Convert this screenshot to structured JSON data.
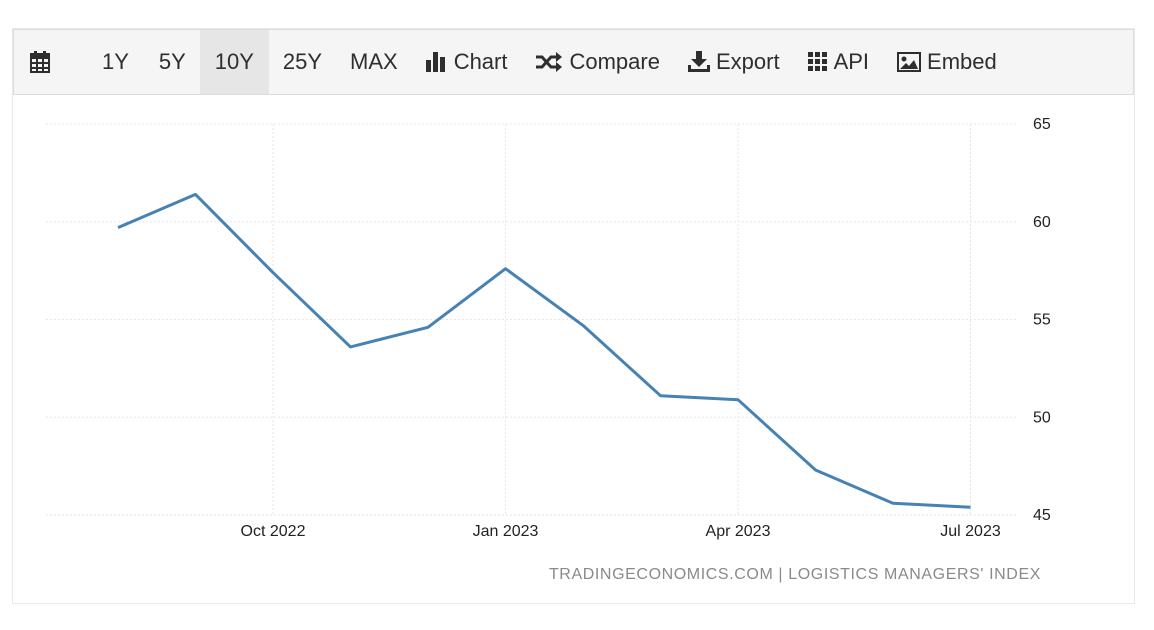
{
  "toolbar": {
    "items": [
      {
        "label": "1Y"
      },
      {
        "label": "5Y"
      },
      {
        "label": "10Y",
        "active": true
      },
      {
        "label": "25Y"
      },
      {
        "label": "MAX"
      },
      {
        "label": "Chart",
        "icon": "bar-chart-icon"
      },
      {
        "label": "Compare",
        "icon": "shuffle-icon"
      },
      {
        "label": "Export",
        "icon": "download-icon"
      },
      {
        "label": "API",
        "icon": "grid-icon"
      },
      {
        "label": "Embed",
        "icon": "image-icon"
      }
    ],
    "calendar_icon": "calendar-icon"
  },
  "credit": "TRADINGECONOMICS.COM | LOGISTICS MANAGERS' INDEX",
  "chart_data": {
    "type": "line",
    "title": "",
    "xlabel": "",
    "ylabel": "",
    "series": [
      {
        "color": "#4682b4",
        "points": [
          {
            "x": "2022-08",
            "y": 59.7
          },
          {
            "x": "2022-09",
            "y": 61.4
          },
          {
            "x": "2022-10",
            "y": 57.4
          },
          {
            "x": "2022-11",
            "y": 53.6
          },
          {
            "x": "2022-12",
            "y": 54.6
          },
          {
            "x": "2023-01",
            "y": 57.6
          },
          {
            "x": "2023-02",
            "y": 54.7
          },
          {
            "x": "2023-03",
            "y": 51.1
          },
          {
            "x": "2023-04",
            "y": 50.9
          },
          {
            "x": "2023-05",
            "y": 47.3
          },
          {
            "x": "2023-06",
            "y": 45.6
          },
          {
            "x": "2023-07",
            "y": 45.4
          }
        ]
      }
    ],
    "x_ticks": [
      {
        "label": "Oct 2022",
        "x": "2022-10"
      },
      {
        "label": "Jan 2023",
        "x": "2023-01"
      },
      {
        "label": "Apr 2023",
        "x": "2023-04"
      },
      {
        "label": "Jul 2023",
        "x": "2023-07"
      }
    ],
    "y_ticks": [
      45,
      50,
      55,
      60,
      65
    ],
    "ylim": [
      45,
      65
    ],
    "y_axis_side": "right",
    "grid": true,
    "grid_color": "#e6e6e6",
    "legend": "none"
  }
}
